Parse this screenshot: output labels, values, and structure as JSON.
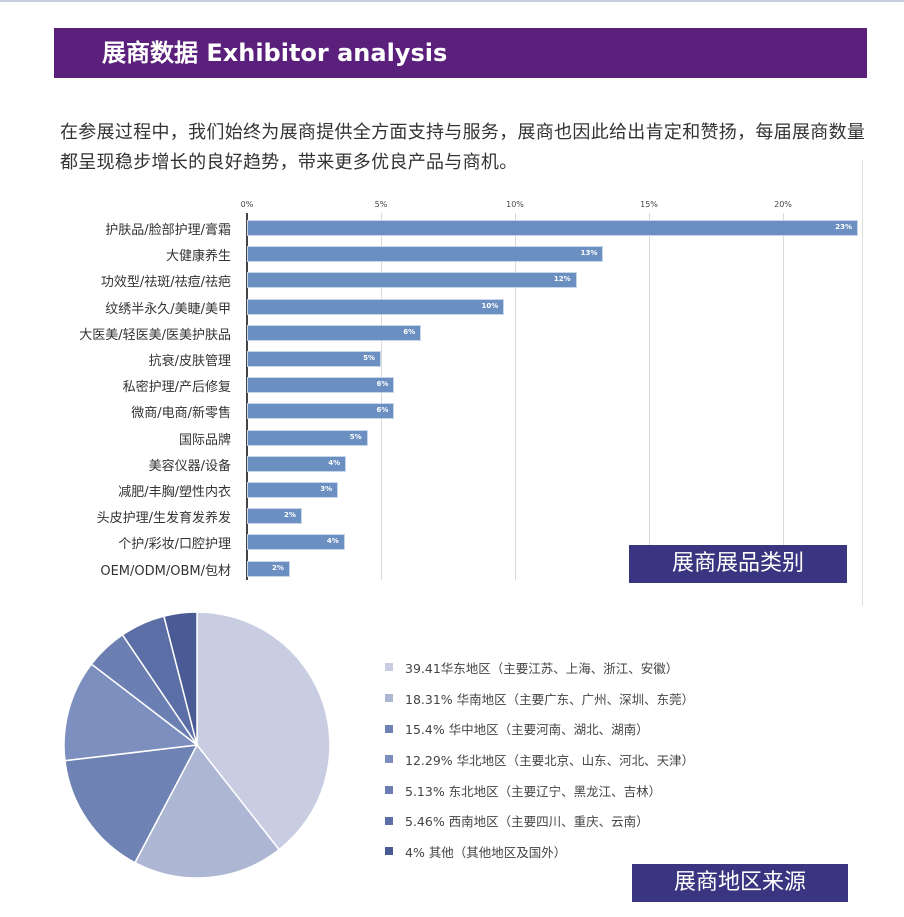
{
  "header": {
    "title": "展商数据 Exhibitor analysis"
  },
  "intro": "在参展过程中，我们始终为展商提供全方面支持与服务，展商也因此给出肯定和赞扬，每届展商数量都呈现稳步增长的良好趋势，带来更多优良产品与商机。",
  "chart_data": [
    {
      "type": "bar",
      "orientation": "horizontal",
      "title": "展商展品类别",
      "categories": [
        "护肤品/脸部护理/膏霜",
        "大健康养生",
        "功效型/祛斑/祛痘/祛疤",
        "纹绣半永久/美睫/美甲",
        "大医美/轻医美/医美护肤品",
        "抗衰/皮肤管理",
        "私密护理/产后修复",
        "微商/电商/新零售",
        "国际品牌",
        "美容仪器/设备",
        "减肥/丰胸/塑性内衣",
        "头皮护理/生发育发养发",
        "个护/彩妆/口腔护理",
        "OEM/ODM/OBM/包材"
      ],
      "values": [
        22.8,
        13.3,
        12.3,
        9.6,
        6.5,
        5.0,
        5.5,
        5.5,
        4.5,
        3.7,
        3.4,
        2.05,
        3.65,
        1.6
      ],
      "labels": [
        "23%",
        "13%",
        "12%",
        "10%",
        "6%",
        "5%",
        "6%",
        "6%",
        "5%",
        "4%",
        "3%",
        "2%",
        "4%",
        "2%"
      ],
      "xticks": [
        "0%",
        "5%",
        "10%",
        "15%",
        "20%"
      ],
      "xlim": [
        0,
        23
      ],
      "grid": true,
      "color": "#6a8fc0"
    },
    {
      "type": "pie",
      "title": "展商地区来源",
      "values": [
        39.41,
        18.31,
        15.4,
        12.29,
        5.13,
        5.46,
        4
      ],
      "legend": [
        "39.41华东地区（主要江苏、上海、浙江、安徽）",
        "18.31% 华南地区（主要广东、广州、深圳、东莞）",
        "15.4% 华中地区（主要河南、湖北、湖南）",
        "12.29% 华北地区（主要北京、山东、河北、天津）",
        "5.13% 东北地区（主要辽宁、黑龙江、吉林）",
        "5.46% 西南地区（主要四川、重庆、云南）",
        "4% 其他（其他地区及国外）"
      ],
      "colors": [
        "#c8cde2",
        "#adb7d4",
        "#6f82b4",
        "#7d8fbf",
        "#6c7fb3",
        "#5c6ea6",
        "#4a5a94"
      ],
      "legend_position": "right"
    }
  ]
}
